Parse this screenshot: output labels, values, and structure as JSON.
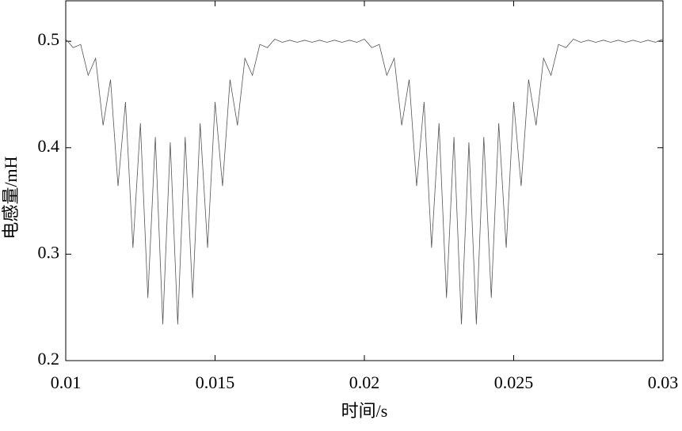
{
  "chart_data": {
    "type": "line",
    "x_label": "时间/s",
    "y_label": "电感量/mH",
    "x": [
      0.01,
      0.01025,
      0.0105,
      0.01075,
      0.011,
      0.01125,
      0.0115,
      0.01175,
      0.012,
      0.01225,
      0.0125,
      0.01275,
      0.013,
      0.01325,
      0.0135,
      0.01375,
      0.014,
      0.01425,
      0.0145,
      0.01475,
      0.015,
      0.01525,
      0.0155,
      0.01575,
      0.016,
      0.01625,
      0.0165,
      0.01675,
      0.017,
      0.01725,
      0.0175,
      0.01775,
      0.018,
      0.01825,
      0.0185,
      0.01875,
      0.019,
      0.01925,
      0.0195,
      0.01975,
      0.02,
      0.02025,
      0.0205,
      0.02075,
      0.021,
      0.02125,
      0.0215,
      0.02175,
      0.022,
      0.02225,
      0.0225,
      0.02275,
      0.023,
      0.02325,
      0.0235,
      0.02375,
      0.024,
      0.02425,
      0.0245,
      0.02475,
      0.025,
      0.02525,
      0.0255,
      0.02575,
      0.026,
      0.02625,
      0.0265,
      0.02675,
      0.027,
      0.02725,
      0.0275,
      0.02775,
      0.028,
      0.02825,
      0.0285,
      0.02875,
      0.029,
      0.02925,
      0.0295,
      0.02975,
      0.03
    ],
    "series": [
      {
        "color": "#555555",
        "values": [
          0.502,
          0.494,
          0.497,
          0.468,
          0.484,
          0.421,
          0.464,
          0.364,
          0.443,
          0.306,
          0.423,
          0.259,
          0.41,
          0.234,
          0.405,
          0.234,
          0.41,
          0.259,
          0.423,
          0.306,
          0.443,
          0.364,
          0.464,
          0.421,
          0.484,
          0.468,
          0.497,
          0.494,
          0.502,
          0.499,
          0.501,
          0.499,
          0.501,
          0.499,
          0.501,
          0.499,
          0.501,
          0.499,
          0.501,
          0.499,
          0.502,
          0.494,
          0.497,
          0.468,
          0.484,
          0.421,
          0.464,
          0.364,
          0.443,
          0.306,
          0.423,
          0.259,
          0.41,
          0.234,
          0.405,
          0.234,
          0.41,
          0.259,
          0.423,
          0.306,
          0.443,
          0.364,
          0.464,
          0.421,
          0.484,
          0.468,
          0.497,
          0.494,
          0.502,
          0.499,
          0.501,
          0.499,
          0.501,
          0.499,
          0.501,
          0.499,
          0.501,
          0.499,
          0.501,
          0.499,
          0.502
        ]
      }
    ],
    "xlim": [
      0.01,
      0.03
    ],
    "xticks": [
      0.01,
      0.015,
      0.02,
      0.025,
      0.03
    ],
    "ylim": [
      0.2,
      0.538
    ],
    "yticks": [
      0.2,
      0.3,
      0.4,
      0.5
    ]
  }
}
